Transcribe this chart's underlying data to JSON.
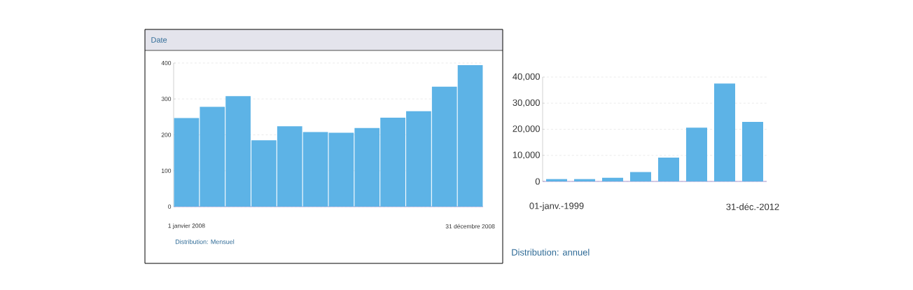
{
  "chart_data": [
    {
      "type": "bar",
      "title": "Date",
      "categories": [
        "1 janvier 2008",
        null,
        null,
        null,
        null,
        null,
        null,
        null,
        null,
        null,
        null,
        "31 décembre 2008"
      ],
      "values": [
        247,
        278,
        308,
        185,
        224,
        208,
        206,
        219,
        248,
        266,
        334,
        394
      ],
      "color": "#5db3e6",
      "ylim": [
        0,
        400
      ],
      "yticks": [
        0,
        100,
        200,
        300,
        400
      ],
      "grid": "y",
      "annotations": [
        "Distribution: Mensuel"
      ]
    },
    {
      "type": "bar",
      "categories": [
        "01-janv.-1999",
        null,
        null,
        null,
        null,
        null,
        null,
        "31-déc.-2012"
      ],
      "values": [
        900,
        900,
        1400,
        3600,
        9100,
        20600,
        37500,
        22800
      ],
      "color": "#5db3e6",
      "ylim": [
        0,
        40000
      ],
      "yticks": [
        0,
        {
          "value": 10000,
          "label": "10,000"
        },
        {
          "value": 20000,
          "label": "20,000"
        },
        {
          "value": 30000,
          "label": "30,000"
        },
        {
          "value": 40000,
          "label": "40,000"
        }
      ],
      "grid": "y",
      "annotations": [
        "Distribution: annuel"
      ]
    }
  ]
}
